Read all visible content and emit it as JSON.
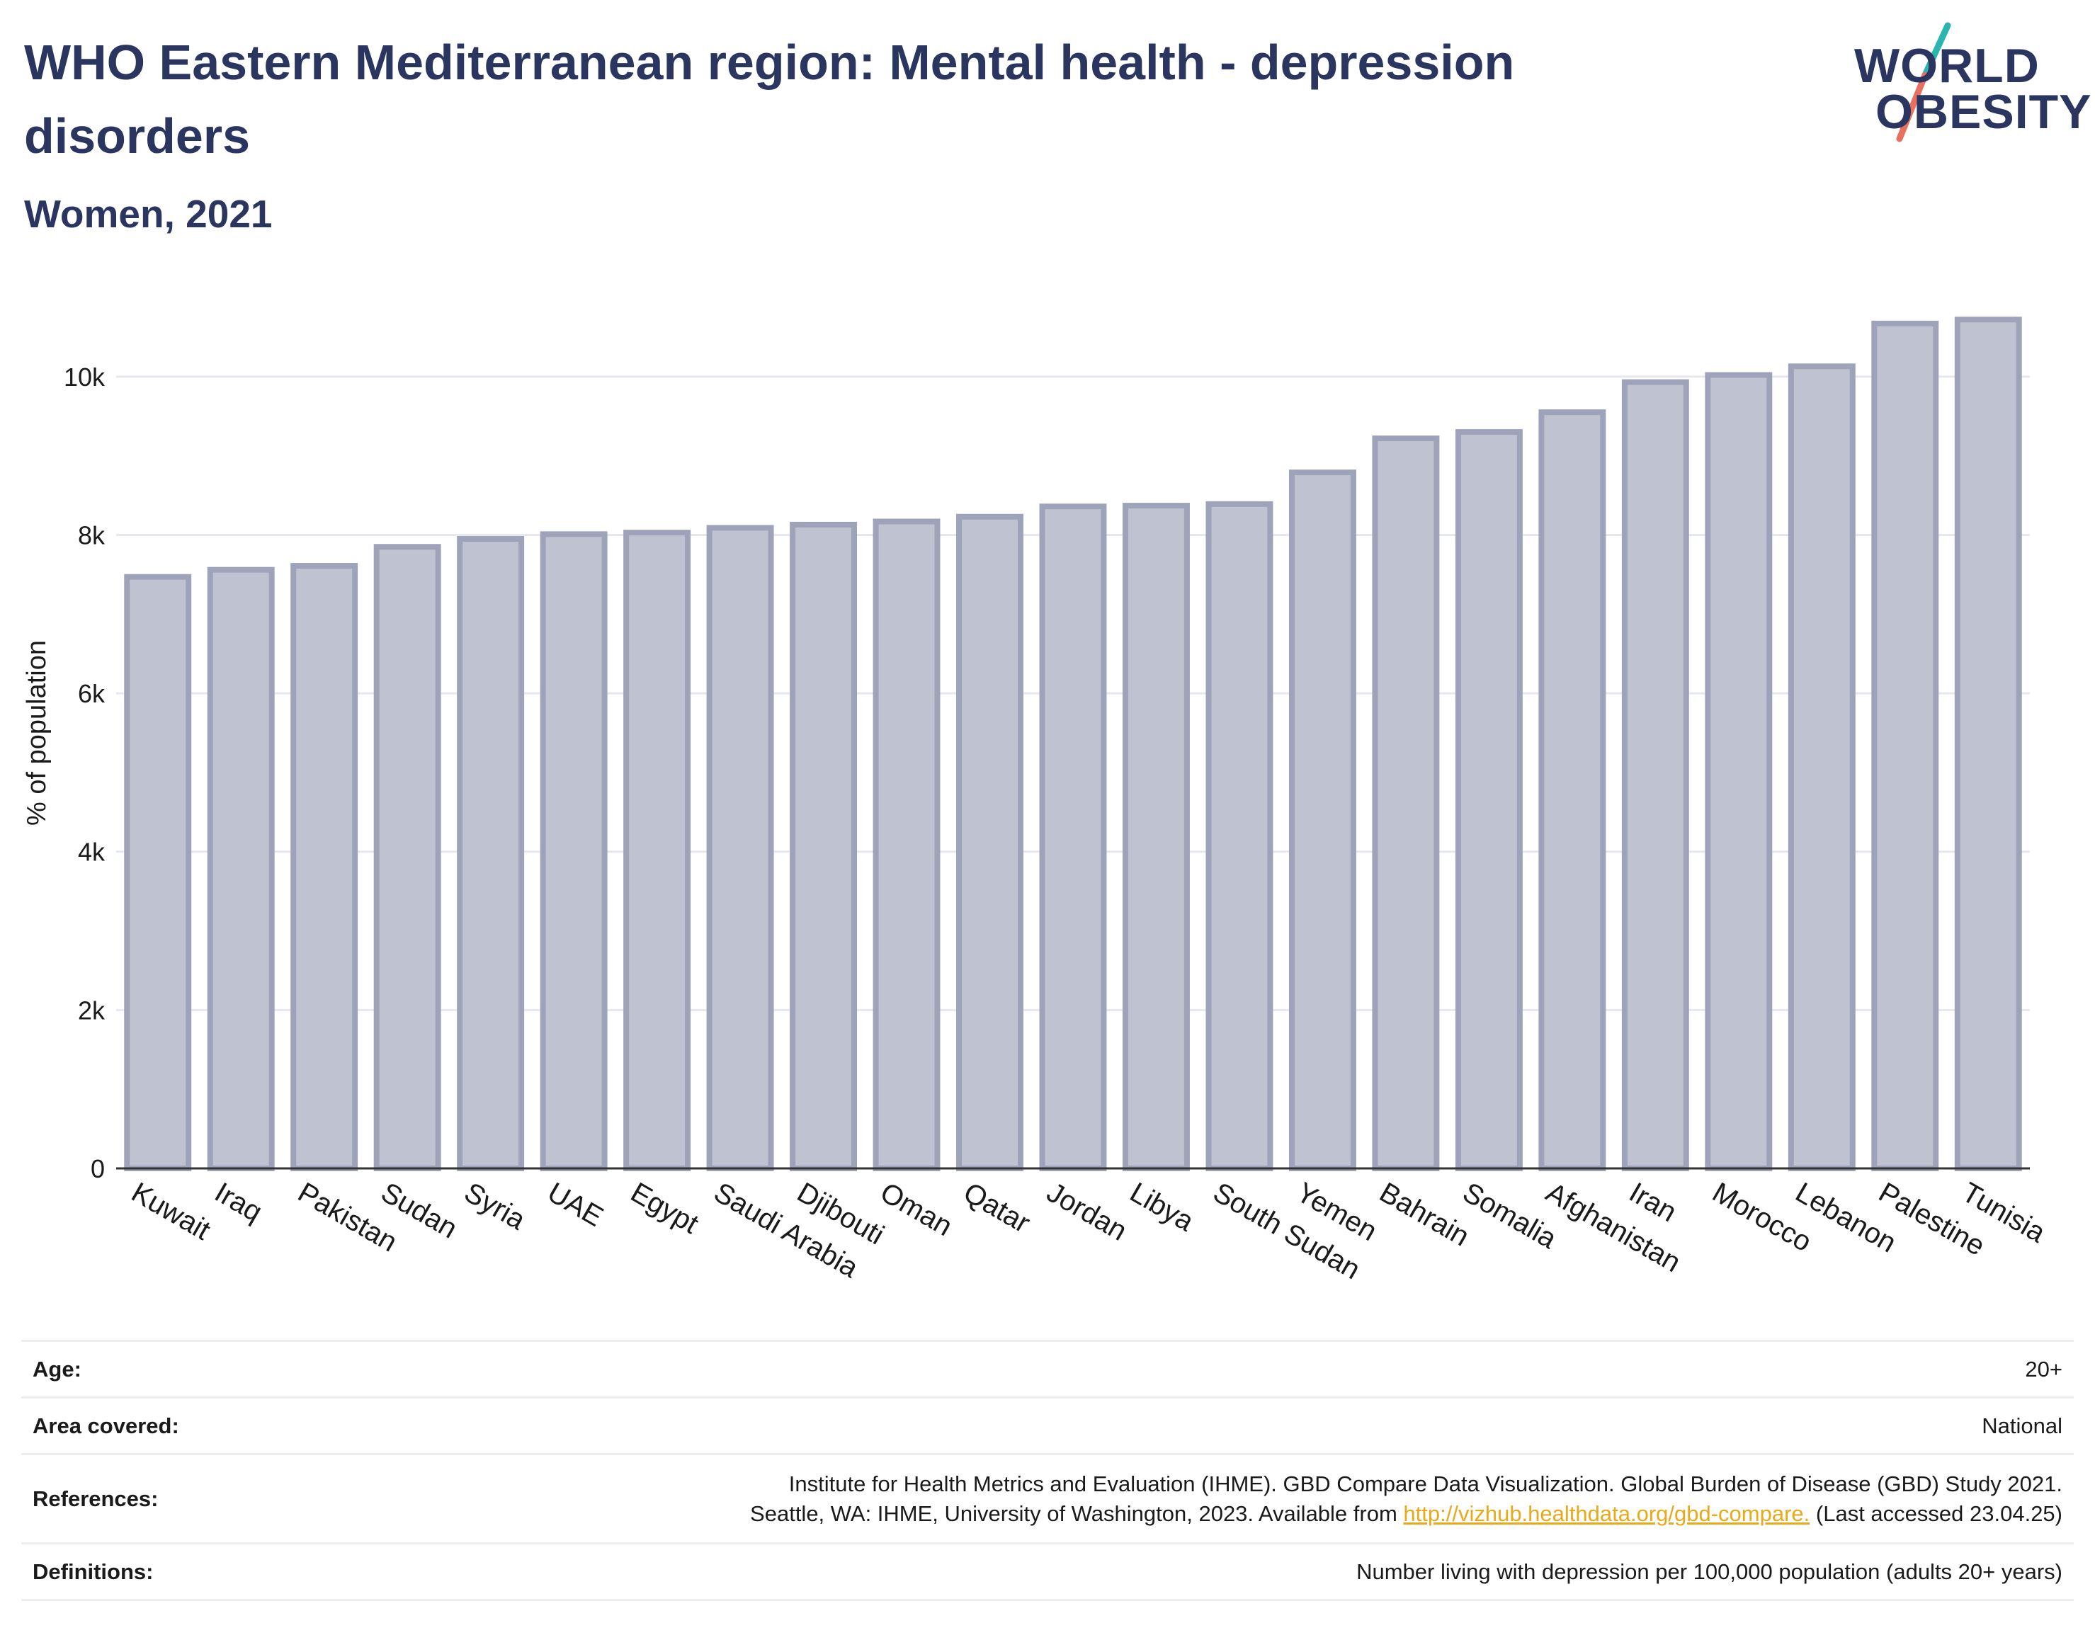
{
  "header": {
    "title": "WHO Eastern Mediterranean region: Mental health - depression disorders",
    "subtitle": "Women, 2021"
  },
  "logo": {
    "line1": "WORLD",
    "line2": "OBESITY",
    "icon": "world-obesity-slash-logo",
    "colors": {
      "text": "#2b3660",
      "slash_top": "#2bb5b0",
      "slash_bottom": "#e8705e"
    }
  },
  "chart_data": {
    "type": "bar",
    "ylabel": "% of population",
    "xlabel": "",
    "ylim": [
      0,
      11000
    ],
    "yticks": [
      0,
      2000,
      4000,
      6000,
      8000,
      10000
    ],
    "ytick_labels": [
      "0",
      "2k",
      "4k",
      "6k",
      "8k",
      "10k"
    ],
    "grid": true,
    "legend": "none",
    "bar_color": "#bfc2d0",
    "bar_edge_color": "#9ea3ba",
    "categories": [
      "Kuwait",
      "Iraq",
      "Pakistan",
      "Sudan",
      "Syria",
      "UAE",
      "Egypt",
      "Saudi Arabia",
      "Djibouti",
      "Oman",
      "Qatar",
      "Jordan",
      "Libya",
      "South Sudan",
      "Yemen",
      "Bahrain",
      "Somalia",
      "Afghanistan",
      "Iran",
      "Morocco",
      "Lebanon",
      "Palestine",
      "Tunisia"
    ],
    "values": [
      7470,
      7560,
      7610,
      7850,
      7950,
      8010,
      8030,
      8090,
      8130,
      8170,
      8230,
      8360,
      8370,
      8390,
      8790,
      9220,
      9300,
      9550,
      9930,
      10020,
      10130,
      10670,
      10720
    ]
  },
  "info": {
    "age": {
      "label": "Age:",
      "value": "20+"
    },
    "area": {
      "label": "Area covered:",
      "value": "National"
    },
    "references": {
      "label": "References:",
      "line1": "Institute for Health Metrics and Evaluation (IHME). GBD Compare Data Visualization. Global Burden of Disease (GBD) Study 2021.",
      "line2_before": "Seattle, WA: IHME, University of Washington, 2023. Available from ",
      "link": "http://vizhub.healthdata.org/gbd-compare.",
      "line2_after": " (Last accessed 23.04.25)"
    },
    "definitions": {
      "label": "Definitions:",
      "value": "Number living with depression per 100,000 population (adults 20+ years)"
    }
  }
}
